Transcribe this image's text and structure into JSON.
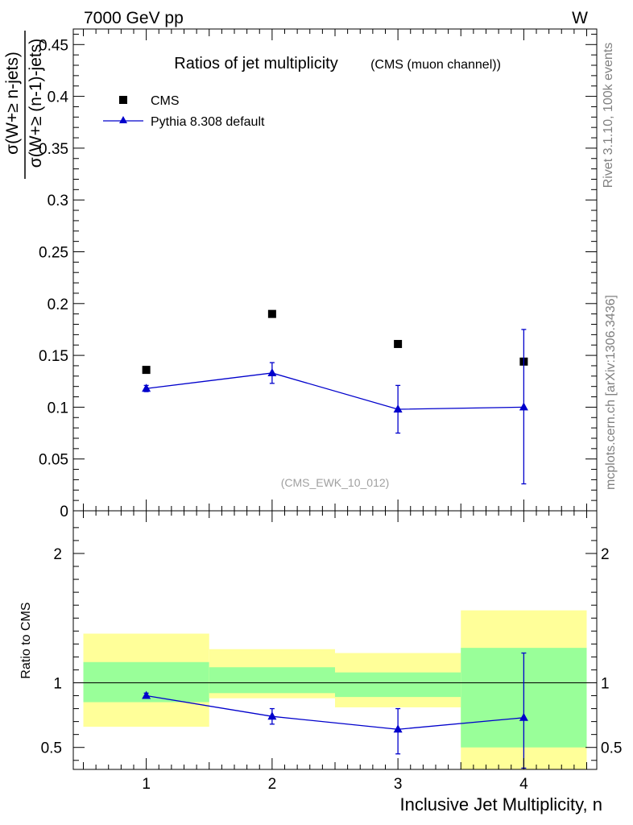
{
  "header": {
    "left_label": "7000 GeV pp",
    "right_label": "W"
  },
  "side_labels": {
    "rivet": "Rivet 3.1.10,  100k events",
    "mcplots": "mcplots.cern.ch [arXiv:1306.3436]"
  },
  "colors": {
    "data": "#000000",
    "mc": "#0000cc",
    "band_inner": "#99ff99",
    "band_outer": "#ffff99"
  },
  "chart_data": [
    {
      "type": "scatter",
      "panel": "main",
      "title": "Ratios of jet multiplicity",
      "subtitle": "(CMS (muon channel))",
      "ylabel_numerator": "σ(W+≥ n-jets)",
      "ylabel_denominator": "σ(W+≥ (n-1)-jets)",
      "xlabel": "",
      "xlim": [
        0.42,
        4.58
      ],
      "ylim": [
        0,
        0.465
      ],
      "yticks": [
        0,
        0.05,
        0.1,
        0.15,
        0.2,
        0.25,
        0.3,
        0.35,
        0.4,
        0.45
      ],
      "ytick_labels": [
        "0",
        "0.05",
        "0.1",
        "0.15",
        "0.2",
        "0.25",
        "0.3",
        "0.35",
        "0.4",
        "0.45"
      ],
      "watermark": "(CMS_EWK_10_012)",
      "legend_position": "top-left",
      "series": [
        {
          "name": "CMS",
          "marker": "square",
          "x": [
            1,
            2,
            3,
            4
          ],
          "values": [
            0.136,
            0.19,
            0.161,
            0.144
          ]
        },
        {
          "name": "Pythia 8.308 default",
          "marker": "triangle",
          "x": [
            1,
            2,
            3,
            4
          ],
          "values": [
            0.118,
            0.133,
            0.098,
            0.1
          ],
          "err_low": [
            0.003,
            0.01,
            0.023,
            0.074
          ],
          "err_high": [
            0.003,
            0.01,
            0.023,
            0.075
          ]
        }
      ]
    },
    {
      "type": "scatter",
      "panel": "ratio",
      "ylabel": "Ratio to CMS",
      "xlabel": "Inclusive Jet Multiplicity, n",
      "xlim": [
        0.42,
        4.58
      ],
      "ylim": [
        0.33,
        2.33
      ],
      "yticks": [
        0.5,
        1,
        2
      ],
      "ytick_labels": [
        "0.5",
        "1",
        "2"
      ],
      "xticks": [
        1,
        2,
        3,
        4
      ],
      "xtick_labels": [
        "1",
        "2",
        "3",
        "4"
      ],
      "reference_line": 1,
      "bands": [
        {
          "x_low": 0.5,
          "x_high": 1.5,
          "inner_low": 0.85,
          "inner_high": 1.16,
          "outer_low": 0.66,
          "outer_high": 1.38
        },
        {
          "x_low": 1.5,
          "x_high": 2.5,
          "inner_low": 0.92,
          "inner_high": 1.12,
          "outer_low": 0.88,
          "outer_high": 1.26
        },
        {
          "x_low": 2.5,
          "x_high": 3.5,
          "inner_low": 0.89,
          "inner_high": 1.08,
          "outer_low": 0.81,
          "outer_high": 1.23
        },
        {
          "x_low": 3.5,
          "x_high": 4.5,
          "inner_low": 0.5,
          "inner_high": 1.27,
          "outer_low": 0.33,
          "outer_high": 1.56
        }
      ],
      "series": [
        {
          "name": "Pythia 8.308 default",
          "marker": "triangle",
          "x": [
            1,
            2,
            3,
            4
          ],
          "values": [
            0.9,
            0.74,
            0.64,
            0.73
          ],
          "err_low": [
            0.02,
            0.06,
            0.19,
            0.39
          ],
          "err_high": [
            0.02,
            0.06,
            0.16,
            0.5
          ]
        }
      ]
    }
  ]
}
